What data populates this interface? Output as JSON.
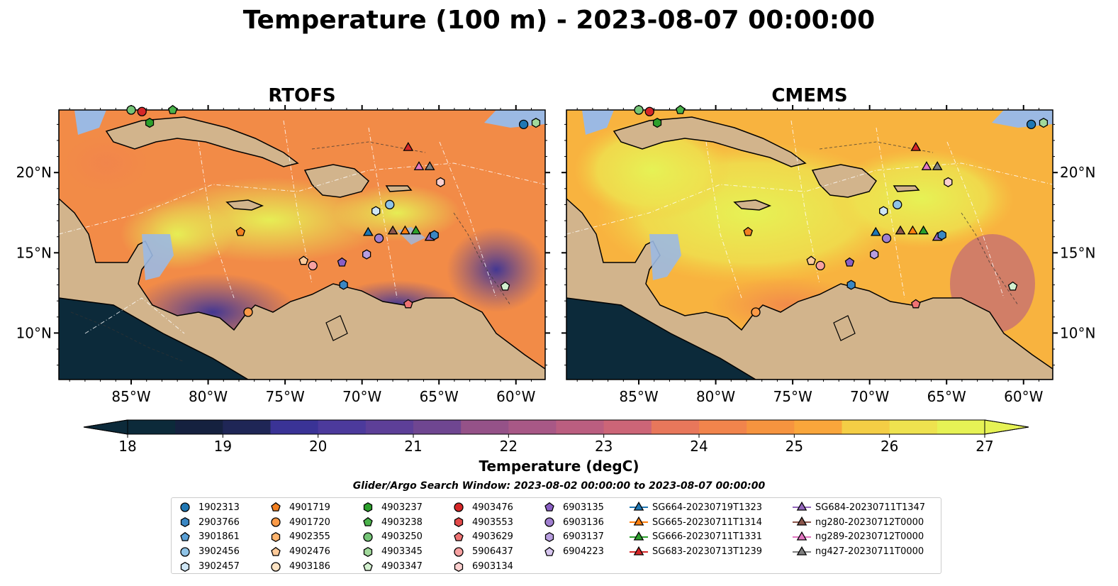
{
  "title": "Temperature (100 m) - 2023-08-07 00:00:00",
  "panels": [
    {
      "name": "rtofs",
      "title": "RTOFS"
    },
    {
      "name": "cmems",
      "title": "CMEMS"
    }
  ],
  "map": {
    "lon_range": [
      -89.7,
      -58.1
    ],
    "lat_range": [
      7.1,
      23.9
    ],
    "lon_ticks": [
      {
        "value": -85,
        "label": "85°W"
      },
      {
        "value": -80,
        "label": "80°W"
      },
      {
        "value": -75,
        "label": "75°W"
      },
      {
        "value": -70,
        "label": "70°W"
      },
      {
        "value": -65,
        "label": "65°W"
      },
      {
        "value": -60,
        "label": "60°W"
      }
    ],
    "lat_ticks": [
      {
        "value": 10,
        "label": "10°N"
      },
      {
        "value": 15,
        "label": "15°N"
      },
      {
        "value": 20,
        "label": "20°N"
      }
    ],
    "colors": {
      "land": "#d2b48c",
      "shelf": "#9bb9e3",
      "coast": "#000000"
    }
  },
  "colorbar": {
    "label": "Temperature (degC)",
    "min": 18,
    "max": 27,
    "step": 0.5,
    "extend": "both",
    "ticks": [
      "18",
      "19",
      "20",
      "21",
      "22",
      "23",
      "24",
      "25",
      "26",
      "27"
    ],
    "colors": [
      "#0c2a3a",
      "#15213f",
      "#1f2656",
      "#2c2e80",
      "#3a3396",
      "#4c3a9c",
      "#5d3f98",
      "#6f4691",
      "#834d8c",
      "#955288",
      "#a85886",
      "#bb5e80",
      "#cc6577",
      "#db6d6a",
      "#e8775b",
      "#f1844c",
      "#f6943f",
      "#f9a63b",
      "#f8ba3e",
      "#f4ce45",
      "#eee24f",
      "#e6f255"
    ],
    "under_color": "#0c2a3a",
    "over_color": "#e6f255"
  },
  "search_window": "Glider/Argo Search Window: 2023-08-02 00:00:00 to 2023-08-07 00:00:00",
  "legend_columns": [
    [
      {
        "label": "1902313",
        "marker": "circle",
        "color": "#1f77b4"
      },
      {
        "label": "2903766",
        "marker": "hexagon",
        "color": "#3a87c3"
      },
      {
        "label": "3901861",
        "marker": "pentagon",
        "color": "#5aa0d6"
      },
      {
        "label": "3902456",
        "marker": "circle",
        "color": "#8fc3e6"
      },
      {
        "label": "3902457",
        "marker": "hexagon",
        "color": "#cfe6f5"
      }
    ],
    [
      {
        "label": "4901719",
        "marker": "pentagon",
        "color": "#f28022"
      },
      {
        "label": "4901720",
        "marker": "circle",
        "color": "#fb9a47"
      },
      {
        "label": "4902355",
        "marker": "hexagon",
        "color": "#fdb46e"
      },
      {
        "label": "4902476",
        "marker": "pentagon",
        "color": "#fdca99"
      },
      {
        "label": "4903186",
        "marker": "circle",
        "color": "#fde3c4"
      }
    ],
    [
      {
        "label": "4903237",
        "marker": "hexagon",
        "color": "#2ca02c"
      },
      {
        "label": "4903238",
        "marker": "pentagon",
        "color": "#4bb34b"
      },
      {
        "label": "4903250",
        "marker": "circle",
        "color": "#74c476"
      },
      {
        "label": "4903345",
        "marker": "hexagon",
        "color": "#a1d99b"
      },
      {
        "label": "4903347",
        "marker": "pentagon",
        "color": "#d3f0cf"
      }
    ],
    [
      {
        "label": "4903476",
        "marker": "circle",
        "color": "#d62728"
      },
      {
        "label": "4903553",
        "marker": "hexagon",
        "color": "#e34a4a"
      },
      {
        "label": "4903629",
        "marker": "pentagon",
        "color": "#ef7373"
      },
      {
        "label": "5906437",
        "marker": "circle",
        "color": "#f7a1a1"
      },
      {
        "label": "6903134",
        "marker": "hexagon",
        "color": "#fbd0cf"
      }
    ],
    [
      {
        "label": "6903135",
        "marker": "pentagon",
        "color": "#8a5fc4"
      },
      {
        "label": "6903136",
        "marker": "circle",
        "color": "#a07fd0"
      },
      {
        "label": "6903137",
        "marker": "hexagon",
        "color": "#b89ee0"
      },
      {
        "label": "6904223",
        "marker": "pentagon",
        "color": "#d7c6f0"
      }
    ],
    [
      {
        "label": "SG664-20230719T1323",
        "marker": "triangle",
        "color": "#1f77b4"
      },
      {
        "label": "SG665-20230711T1314",
        "marker": "triangle",
        "color": "#ff7f0e"
      },
      {
        "label": "SG666-20230711T1331",
        "marker": "triangle",
        "color": "#2ca02c"
      },
      {
        "label": "SG683-20230713T1239",
        "marker": "triangle",
        "color": "#d62728"
      }
    ],
    [
      {
        "label": "SG684-20230711T1347",
        "marker": "triangle",
        "color": "#9467bd"
      },
      {
        "label": "ng280-20230712T0000",
        "marker": "triangle",
        "color": "#8c564b"
      },
      {
        "label": "ng289-20230712T0000",
        "marker": "triangle",
        "color": "#e377c2"
      },
      {
        "label": "ng427-20230711T0000",
        "marker": "triangle",
        "color": "#7f7f7f"
      }
    ]
  ],
  "observations": [
    {
      "id": "1902313",
      "lon": -59.5,
      "lat": 23.0
    },
    {
      "id": "4903345",
      "lon": -58.7,
      "lat": 23.1
    },
    {
      "id": "4903237",
      "lon": -83.8,
      "lat": 23.1
    },
    {
      "id": "4903250",
      "lon": -85.0,
      "lat": 23.9
    },
    {
      "id": "4903476",
      "lon": -84.3,
      "lat": 23.8
    },
    {
      "id": "4903238",
      "lon": -82.3,
      "lat": 23.9
    },
    {
      "id": "SG683-20230713T1239",
      "lon": -67.0,
      "lat": 21.6
    },
    {
      "id": "ng289-20230712T0000",
      "lon": -66.3,
      "lat": 20.4
    },
    {
      "id": "ng427-20230711T0000",
      "lon": -65.6,
      "lat": 20.4
    },
    {
      "id": "6903134",
      "lon": -64.9,
      "lat": 19.4
    },
    {
      "id": "3902456",
      "lon": -68.2,
      "lat": 18.0
    },
    {
      "id": "3902457",
      "lon": -69.1,
      "lat": 17.6
    },
    {
      "id": "4901719",
      "lon": -77.9,
      "lat": 16.3
    },
    {
      "id": "SG664-20230719T1323",
      "lon": -69.6,
      "lat": 16.3
    },
    {
      "id": "6903136",
      "lon": -68.9,
      "lat": 15.9
    },
    {
      "id": "ng280-20230712T0000",
      "lon": -68.0,
      "lat": 16.4
    },
    {
      "id": "SG665-20230711T1314",
      "lon": -67.2,
      "lat": 16.4
    },
    {
      "id": "SG666-20230711T1331",
      "lon": -66.5,
      "lat": 16.4
    },
    {
      "id": "SG684-20230711T1347",
      "lon": -65.6,
      "lat": 16.0
    },
    {
      "id": "2903766",
      "lon": -65.3,
      "lat": 16.1
    },
    {
      "id": "6903137",
      "lon": -69.7,
      "lat": 14.9
    },
    {
      "id": "4902476",
      "lon": -73.8,
      "lat": 14.5
    },
    {
      "id": "5906437",
      "lon": -73.2,
      "lat": 14.2
    },
    {
      "id": "6903135",
      "lon": -71.3,
      "lat": 14.4
    },
    {
      "id": "2903766",
      "lon": -71.2,
      "lat": 13.0
    },
    {
      "id": "4903347",
      "lon": -60.7,
      "lat": 12.9
    },
    {
      "id": "4903629",
      "lon": -67.0,
      "lat": 11.8
    },
    {
      "id": "4901720",
      "lon": -77.4,
      "lat": 11.3
    }
  ]
}
